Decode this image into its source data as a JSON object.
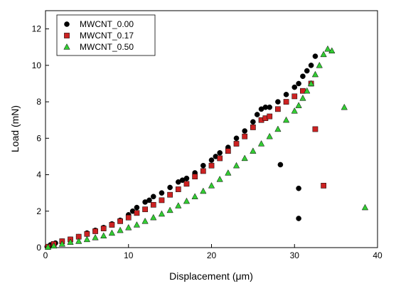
{
  "chart_data": {
    "type": "scatter",
    "title": "",
    "xlabel": "Displacement (μm)",
    "ylabel": "Load (mN)",
    "xlim": [
      0,
      40
    ],
    "ylim": [
      0,
      13
    ],
    "xticks": [
      0,
      10,
      20,
      30,
      40
    ],
    "yticks": [
      0,
      2,
      4,
      6,
      8,
      10,
      12
    ],
    "grid": false,
    "legend_position": "top-left",
    "series": [
      {
        "name": "MWCNT_0.00",
        "color": "#000000",
        "marker": "circle",
        "points": [
          [
            0.2,
            0.05
          ],
          [
            0.6,
            0.15
          ],
          [
            1.2,
            0.25
          ],
          [
            2,
            0.35
          ],
          [
            3,
            0.45
          ],
          [
            4,
            0.6
          ],
          [
            5,
            0.8
          ],
          [
            6,
            0.95
          ],
          [
            7,
            1.1
          ],
          [
            8,
            1.3
          ],
          [
            9,
            1.5
          ],
          [
            10,
            1.8
          ],
          [
            10.5,
            2.0
          ],
          [
            11,
            2.2
          ],
          [
            12,
            2.5
          ],
          [
            12.5,
            2.6
          ],
          [
            13,
            2.8
          ],
          [
            14,
            3.0
          ],
          [
            15,
            3.3
          ],
          [
            16,
            3.6
          ],
          [
            16.5,
            3.7
          ],
          [
            17,
            3.8
          ],
          [
            18,
            4.1
          ],
          [
            19,
            4.5
          ],
          [
            20,
            4.8
          ],
          [
            20.5,
            5.0
          ],
          [
            21,
            5.2
          ],
          [
            22,
            5.5
          ],
          [
            23,
            6.0
          ],
          [
            24,
            6.4
          ],
          [
            25,
            6.9
          ],
          [
            25.5,
            7.3
          ],
          [
            26,
            7.6
          ],
          [
            26.5,
            7.7
          ],
          [
            27,
            7.7
          ],
          [
            28,
            8.0
          ],
          [
            29,
            8.4
          ],
          [
            30,
            8.8
          ],
          [
            30.5,
            9.0
          ],
          [
            31,
            9.4
          ],
          [
            31.5,
            9.7
          ],
          [
            32,
            10.0
          ],
          [
            32.5,
            10.5
          ],
          [
            28.3,
            4.55
          ],
          [
            30.5,
            3.25
          ],
          [
            30.5,
            1.6
          ]
        ]
      },
      {
        "name": "MWCNT_0.17",
        "color": "#cc2222",
        "marker": "square",
        "points": [
          [
            0.3,
            0.05
          ],
          [
            1,
            0.2
          ],
          [
            2,
            0.35
          ],
          [
            3,
            0.45
          ],
          [
            4,
            0.6
          ],
          [
            5,
            0.75
          ],
          [
            6,
            0.9
          ],
          [
            7,
            1.05
          ],
          [
            8,
            1.25
          ],
          [
            9,
            1.45
          ],
          [
            10,
            1.65
          ],
          [
            11,
            1.9
          ],
          [
            12,
            2.1
          ],
          [
            13,
            2.35
          ],
          [
            14,
            2.6
          ],
          [
            15,
            2.9
          ],
          [
            16,
            3.2
          ],
          [
            17,
            3.5
          ],
          [
            18,
            3.9
          ],
          [
            19,
            4.2
          ],
          [
            20,
            4.5
          ],
          [
            21,
            4.9
          ],
          [
            22,
            5.3
          ],
          [
            23,
            5.7
          ],
          [
            24,
            6.1
          ],
          [
            25,
            6.6
          ],
          [
            26,
            7.0
          ],
          [
            26.5,
            7.1
          ],
          [
            27,
            7.2
          ],
          [
            28,
            7.6
          ],
          [
            29,
            8.0
          ],
          [
            30,
            8.3
          ],
          [
            31,
            8.6
          ],
          [
            32,
            9.0
          ],
          [
            32.5,
            6.5
          ],
          [
            33.5,
            3.4
          ]
        ]
      },
      {
        "name": "MWCNT_0.50",
        "color": "#33cc33",
        "marker": "triangle",
        "points": [
          [
            0.3,
            0.03
          ],
          [
            1,
            0.1
          ],
          [
            2,
            0.2
          ],
          [
            3,
            0.3
          ],
          [
            4,
            0.35
          ],
          [
            5,
            0.45
          ],
          [
            6,
            0.55
          ],
          [
            7,
            0.65
          ],
          [
            8,
            0.8
          ],
          [
            9,
            0.95
          ],
          [
            10,
            1.1
          ],
          [
            11,
            1.25
          ],
          [
            12,
            1.45
          ],
          [
            13,
            1.65
          ],
          [
            14,
            1.85
          ],
          [
            15,
            2.05
          ],
          [
            16,
            2.3
          ],
          [
            17,
            2.55
          ],
          [
            18,
            2.8
          ],
          [
            19,
            3.1
          ],
          [
            20,
            3.4
          ],
          [
            21,
            3.75
          ],
          [
            22,
            4.1
          ],
          [
            23,
            4.5
          ],
          [
            24,
            4.9
          ],
          [
            25,
            5.3
          ],
          [
            26,
            5.7
          ],
          [
            27,
            6.1
          ],
          [
            28,
            6.5
          ],
          [
            29,
            7.0
          ],
          [
            30,
            7.5
          ],
          [
            30.5,
            7.8
          ],
          [
            31,
            8.2
          ],
          [
            31.5,
            8.6
          ],
          [
            32,
            9.0
          ],
          [
            32.5,
            9.5
          ],
          [
            33,
            10.0
          ],
          [
            33.5,
            10.6
          ],
          [
            34,
            10.9
          ],
          [
            34.5,
            10.8
          ],
          [
            36,
            7.7
          ],
          [
            38.5,
            2.2
          ]
        ]
      }
    ]
  }
}
